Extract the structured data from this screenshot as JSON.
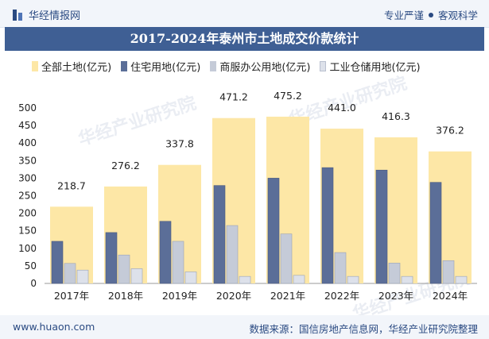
{
  "header": {
    "brand": "华经情报网",
    "tagline_left": "专业严谨",
    "tagline_right": "客观科学"
  },
  "footer": {
    "url": "www.huaon.com",
    "source": "数据来源：国信房地产信息网，华经产业研究院整理"
  },
  "watermark": "华经产业研究院",
  "colors": {
    "total": "#fde7a6",
    "residential": "#5b6e98",
    "commercial": "#c5cbd8",
    "industrial": "#dde1ea",
    "title_bg": "#3f5f94",
    "brand": "#2a4a82"
  },
  "chart_data": {
    "type": "bar",
    "title": "2017-2024年泰州市土地成交价款统计",
    "categories": [
      "2017年",
      "2018年",
      "2019年",
      "2020年",
      "2021年",
      "2022年",
      "2023年",
      "2024年"
    ],
    "series": [
      {
        "name": "全部土地(亿元)",
        "values": [
          218.7,
          276.2,
          337.8,
          471.2,
          475.2,
          441.0,
          416.3,
          376.2
        ],
        "labels": [
          "218.7",
          "276.2",
          "337.8",
          "471.2",
          "475.2",
          "441.0",
          "416.3",
          "376.2"
        ]
      },
      {
        "name": "住宅用地(亿元)",
        "values": [
          120,
          145,
          177,
          279,
          300,
          330,
          323,
          288
        ]
      },
      {
        "name": "商服办公用地(亿元)",
        "values": [
          57,
          81,
          120,
          165,
          141,
          88,
          58,
          65
        ]
      },
      {
        "name": "工业仓储用地(亿元)",
        "values": [
          38,
          42,
          33,
          20,
          23,
          20,
          20,
          20
        ]
      }
    ],
    "yticks": [
      0,
      50,
      100,
      150,
      200,
      250,
      300,
      350,
      400,
      450,
      500
    ],
    "ylim": [
      0,
      500
    ],
    "legend_position": "top",
    "grid": false
  }
}
